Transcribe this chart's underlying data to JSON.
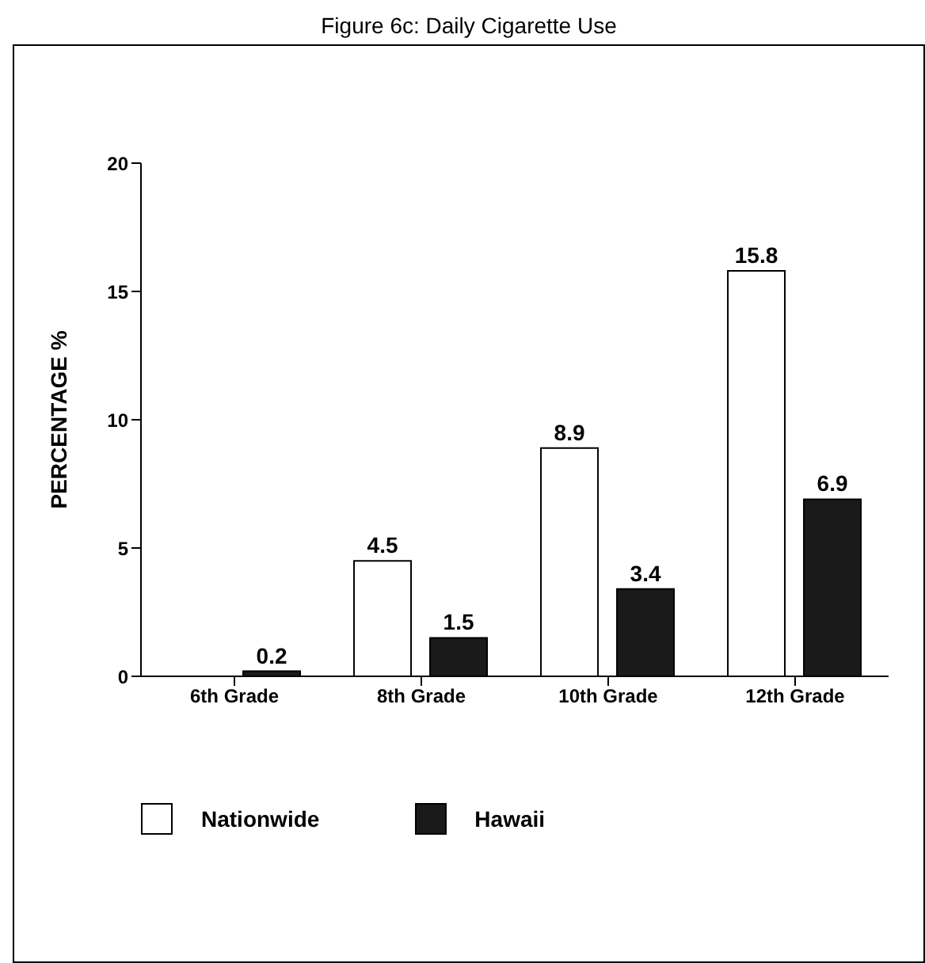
{
  "chart_data": {
    "type": "bar",
    "title": "Figure 6c: Daily Cigarette Use",
    "ylabel": "PERCENTAGE %",
    "categories": [
      "6th Grade",
      "8th Grade",
      "10th Grade",
      "12th Grade"
    ],
    "series": [
      {
        "name": "Nationwide",
        "color": "#ffffff",
        "values": [
          null,
          4.5,
          8.9,
          15.8
        ]
      },
      {
        "name": "Hawaii",
        "color": "#1a1a1a",
        "values": [
          0.2,
          1.5,
          3.4,
          6.9
        ]
      }
    ],
    "ylim": [
      0,
      20
    ],
    "yticks": [
      0,
      5,
      10,
      15,
      20
    ],
    "grid": false,
    "legend": "bottom",
    "data_labels": true
  }
}
